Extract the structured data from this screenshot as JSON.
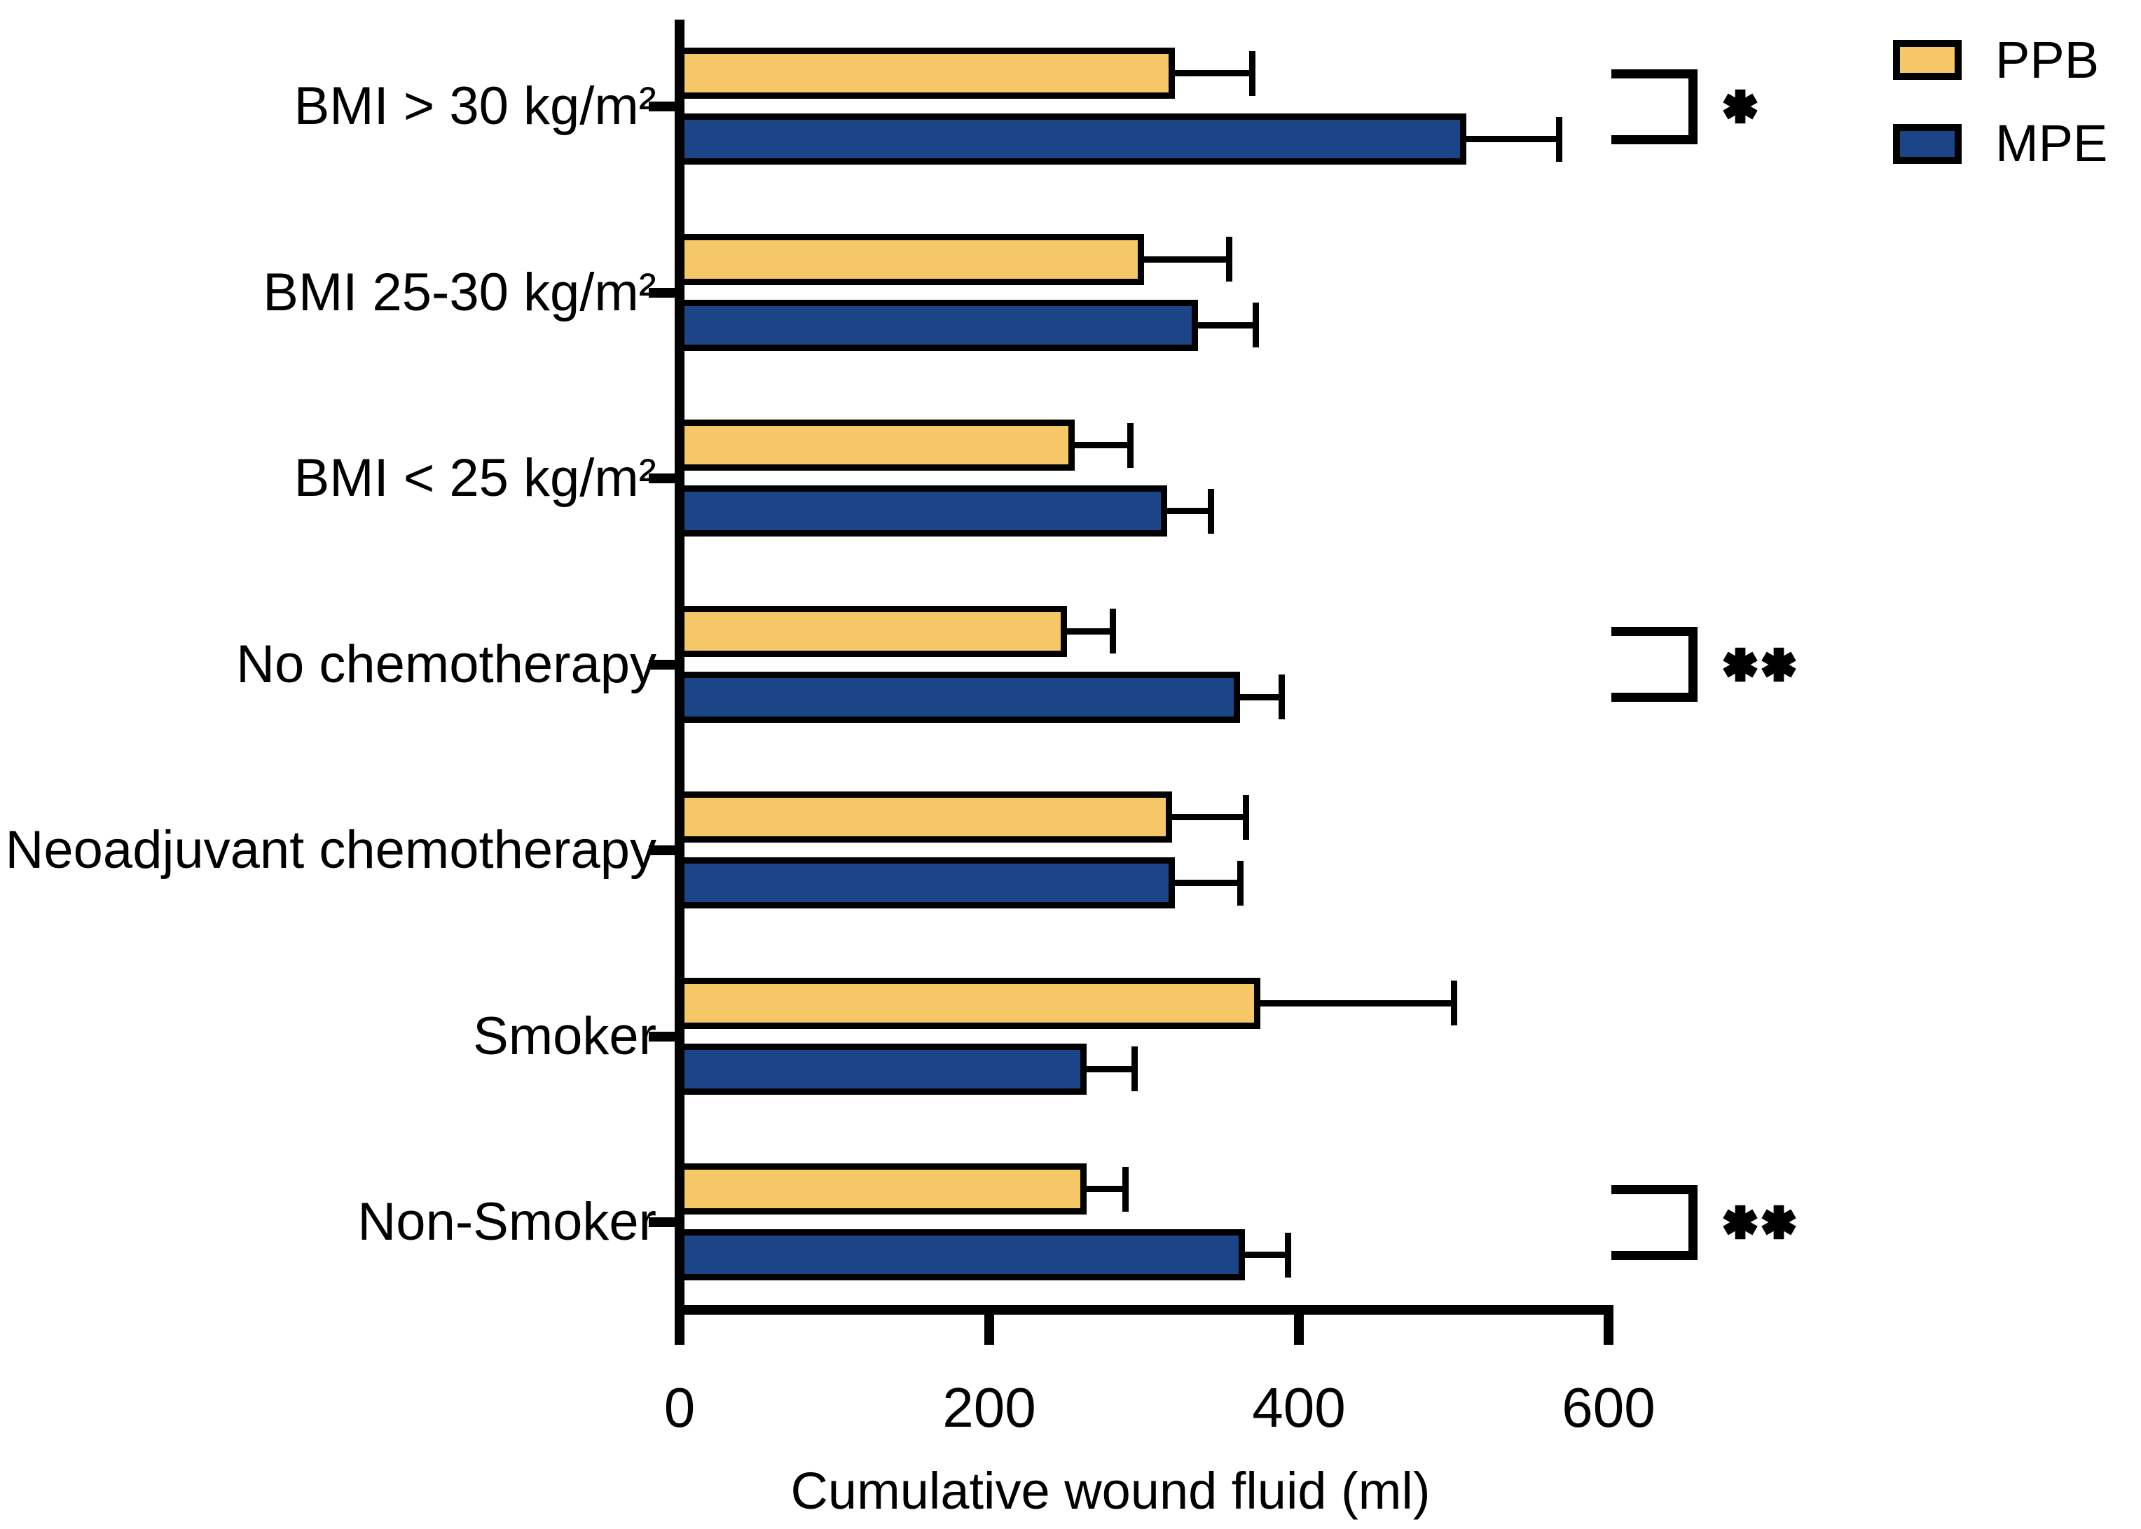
{
  "chart_data": {
    "type": "bar",
    "orientation": "horizontal",
    "xlabel": "Cumulative wound fluid (ml)",
    "x_ticks": [
      0,
      200,
      400,
      600
    ],
    "xlim": [
      0,
      600
    ],
    "grid": false,
    "legend_position": "top-right",
    "error_bars": "positive, capped",
    "categories": [
      "BMI > 30 kg/m²",
      "BMI 25-30 kg/m²",
      "BMI < 25 kg/m²",
      "No chemotherapy",
      "Neoadjuvant chemotherapy",
      "Smoker",
      "Non-Smoker"
    ],
    "series": [
      {
        "name": "PPB",
        "color": "#F5C767",
        "values": [
          320,
          300,
          255,
          250,
          318,
          375,
          263
        ],
        "errors": [
          50,
          55,
          36,
          30,
          48,
          125,
          25
        ]
      },
      {
        "name": "MPE",
        "color": "#1B4586",
        "values": [
          508,
          335,
          315,
          362,
          320,
          263,
          365
        ],
        "errors": [
          60,
          37,
          28,
          27,
          42,
          31,
          28
        ]
      }
    ],
    "significance": [
      {
        "category_index": 0,
        "category": "BMI > 30 kg/m²",
        "label": "*"
      },
      {
        "category_index": 3,
        "category": "No chemotherapy",
        "label": "**"
      },
      {
        "category_index": 6,
        "category": "Non-Smoker",
        "label": "**"
      }
    ]
  }
}
